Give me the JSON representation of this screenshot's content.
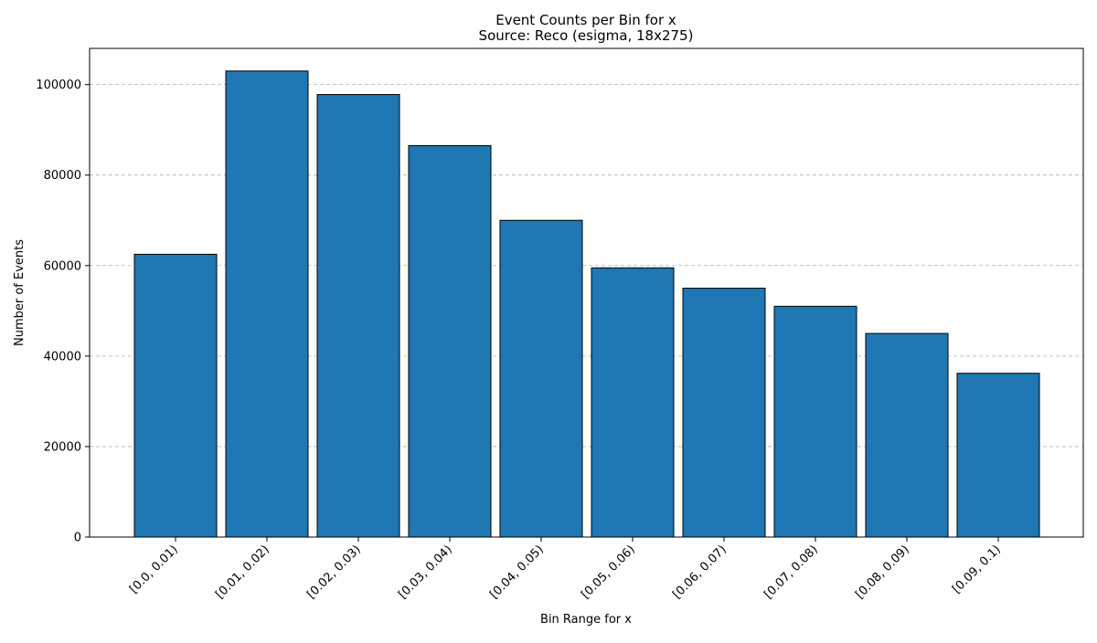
{
  "chart_data": {
    "type": "bar",
    "title": "Event Counts per Bin for x",
    "subtitle": "Source: Reco (esigma, 18x275)",
    "xlabel": "Bin Range for x",
    "ylabel": "Number of Events",
    "categories": [
      "[0.0, 0.01)",
      "[0.01, 0.02)",
      "[0.02, 0.03)",
      "[0.03, 0.04)",
      "[0.04, 0.05)",
      "[0.05, 0.06)",
      "[0.06, 0.07)",
      "[0.07, 0.08)",
      "[0.08, 0.09)",
      "[0.09, 0.1)"
    ],
    "values": [
      62500,
      103000,
      97800,
      86500,
      70000,
      59500,
      55000,
      51000,
      45000,
      36200
    ],
    "ylim": [
      0,
      108000
    ],
    "yticks": [
      0,
      20000,
      40000,
      60000,
      80000,
      100000
    ],
    "grid": "y, dashed",
    "legend": "none",
    "bar_color": "#1f77b4",
    "edge_color": "#000000"
  }
}
